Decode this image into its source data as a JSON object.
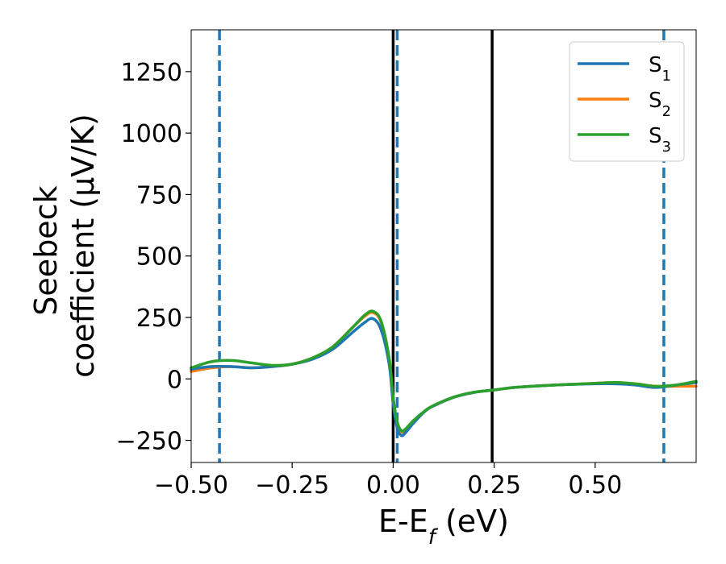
{
  "chart_data": {
    "type": "line",
    "xlabel": {
      "main": "E-E",
      "sub": "f",
      "unit": " (eV)"
    },
    "ylabel": {
      "line1": "Seebeck",
      "line2": "coefficient  (μV/K)"
    },
    "xlim": [
      -0.5,
      0.75
    ],
    "ylim": [
      -340,
      1420
    ],
    "xticks": [
      -0.5,
      -0.25,
      0.0,
      0.25,
      0.5
    ],
    "xtick_labels": [
      "−0.50",
      "−0.25",
      "0.00",
      "0.25",
      "0.50"
    ],
    "yticks": [
      -250,
      0,
      250,
      500,
      750,
      1000,
      1250
    ],
    "ytick_labels": [
      "−250",
      "0",
      "250",
      "500",
      "750",
      "1000",
      "1250"
    ],
    "grid": false,
    "legend_position": "top-right",
    "vlines": [
      {
        "x": -0.43,
        "style": "dashed",
        "color": "#1f77b4"
      },
      {
        "x": 0.01,
        "style": "dashed",
        "color": "#1f77b4"
      },
      {
        "x": 0.67,
        "style": "dashed",
        "color": "#1f77b4"
      },
      {
        "x": 0.0,
        "style": "solid",
        "color": "#000000"
      },
      {
        "x": 0.245,
        "style": "solid",
        "color": "#000000"
      }
    ],
    "series": [
      {
        "name": "S1",
        "label_main": "S",
        "label_sub": "1",
        "color": "#1f77b4",
        "x": [
          -0.5,
          -0.45,
          -0.4,
          -0.35,
          -0.3,
          -0.25,
          -0.2,
          -0.15,
          -0.1,
          -0.07,
          -0.05,
          -0.03,
          -0.01,
          0.0,
          0.01,
          0.02,
          0.03,
          0.05,
          0.08,
          0.1,
          0.15,
          0.2,
          0.25,
          0.3,
          0.4,
          0.5,
          0.55,
          0.6,
          0.65,
          0.7,
          0.75
        ],
        "y": [
          40,
          50,
          50,
          45,
          50,
          60,
          80,
          120,
          190,
          230,
          245,
          200,
          60,
          -100,
          -200,
          -230,
          -220,
          -180,
          -130,
          -110,
          -75,
          -55,
          -45,
          -35,
          -25,
          -20,
          -20,
          -25,
          -35,
          -25,
          -15
        ]
      },
      {
        "name": "S2",
        "label_main": "S",
        "label_sub": "2",
        "color": "#ff7f0e",
        "x": [
          -0.5,
          -0.45,
          -0.4,
          -0.35,
          -0.3,
          -0.25,
          -0.2,
          -0.15,
          -0.1,
          -0.07,
          -0.05,
          -0.03,
          -0.01,
          0.0,
          0.01,
          0.02,
          0.03,
          0.05,
          0.08,
          0.1,
          0.15,
          0.2,
          0.25,
          0.3,
          0.4,
          0.5,
          0.55,
          0.6,
          0.65,
          0.7,
          0.75
        ],
        "y": [
          30,
          45,
          50,
          45,
          50,
          60,
          85,
          130,
          210,
          255,
          270,
          230,
          80,
          -80,
          -180,
          -215,
          -210,
          -175,
          -130,
          -110,
          -75,
          -55,
          -45,
          -35,
          -25,
          -18,
          -15,
          -20,
          -30,
          -30,
          -30
        ]
      },
      {
        "name": "S3",
        "label_main": "S",
        "label_sub": "3",
        "color": "#2ca02c",
        "x": [
          -0.5,
          -0.45,
          -0.4,
          -0.35,
          -0.3,
          -0.25,
          -0.2,
          -0.15,
          -0.1,
          -0.07,
          -0.05,
          -0.03,
          -0.01,
          0.0,
          0.01,
          0.02,
          0.03,
          0.05,
          0.08,
          0.1,
          0.15,
          0.2,
          0.25,
          0.3,
          0.4,
          0.5,
          0.55,
          0.6,
          0.65,
          0.7,
          0.75
        ],
        "y": [
          45,
          70,
          75,
          65,
          55,
          60,
          85,
          130,
          210,
          260,
          275,
          235,
          85,
          -75,
          -175,
          -210,
          -205,
          -170,
          -128,
          -108,
          -74,
          -54,
          -45,
          -35,
          -25,
          -18,
          -15,
          -20,
          -30,
          -25,
          -10
        ]
      }
    ]
  }
}
